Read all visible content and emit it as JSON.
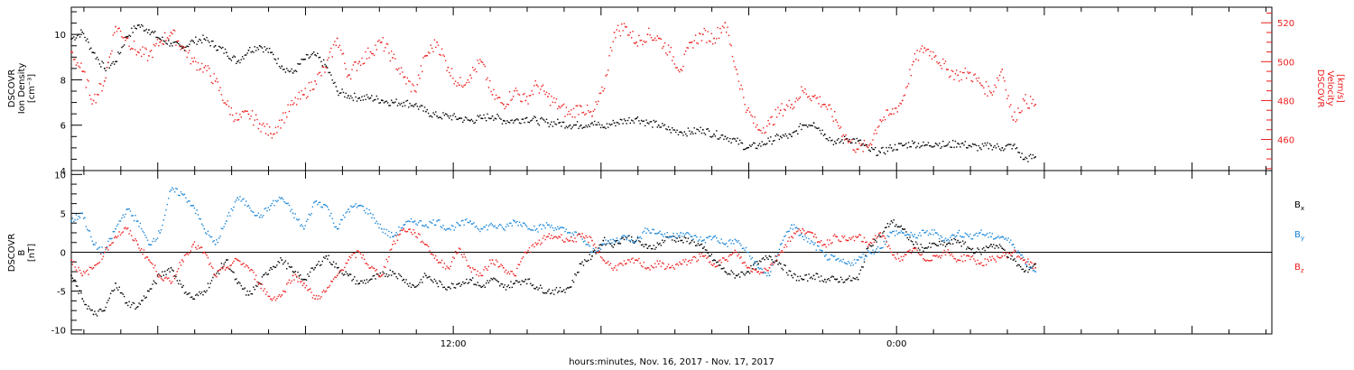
{
  "chart_data": [
    {
      "type": "scatter",
      "panel": "top",
      "ylabel_left": [
        "DSCOVR",
        "Ion Density",
        "[cm⁻³]"
      ],
      "ylabel_right": [
        "DSCOVR",
        "Velocity",
        "[km/s]"
      ],
      "ylim_left": [
        4,
        11.2
      ],
      "yticks_left": [
        "4",
        "6",
        "8",
        "10"
      ],
      "ylim_right": [
        444,
        528
      ],
      "yticks_right": [
        "460",
        "480",
        "500",
        "520"
      ],
      "series": [
        {
          "color": "#000000",
          "axis": "left",
          "x": [
            0,
            0.3,
            0.6,
            0.9,
            1.2,
            1.5,
            1.8,
            2.1,
            2.4,
            2.7,
            3,
            3.3,
            3.6,
            3.9,
            4.2,
            4.5,
            4.8,
            5.1,
            5.4,
            5.7,
            6,
            6.3,
            6.6,
            6.9,
            7.2,
            7.5,
            7.8,
            8.1,
            8.4,
            8.7,
            9,
            9.3,
            9.6,
            9.9,
            10.2,
            10.5,
            10.8,
            11.1,
            11.4,
            11.7,
            12,
            12.3,
            12.6,
            12.9,
            13.2,
            13.5,
            13.8,
            14.1,
            14.4,
            14.7,
            15,
            15.3,
            15.6,
            15.9,
            16.2,
            16.5,
            16.8,
            17.1,
            17.4,
            17.7,
            18,
            18.3,
            18.6,
            18.9,
            19.2,
            19.5,
            19.8,
            20.1,
            20.4,
            20.7,
            21,
            21.3,
            21.6,
            21.9,
            22.2,
            22.5,
            22.8,
            23.1,
            23.4,
            23.7,
            24,
            24.3,
            24.6,
            24.9,
            25.2,
            25.5,
            25.8,
            26.1
          ],
          "y": [
            9.8,
            10.1,
            9.2,
            8.5,
            8.8,
            9.9,
            10.4,
            10.2,
            9.8,
            9.6,
            9.4,
            9.7,
            9.8,
            9.5,
            9.2,
            8.8,
            9.3,
            9.5,
            9.2,
            8.6,
            8.3,
            8.9,
            9.1,
            8.6,
            7.5,
            7.3,
            7.2,
            7.2,
            7.1,
            7,
            7,
            6.9,
            6.6,
            6.4,
            6.4,
            6.3,
            6.2,
            6.3,
            6.4,
            6.2,
            6.2,
            6.3,
            6.2,
            6.1,
            6.1,
            6,
            6,
            6.1,
            5.9,
            6.1,
            6.2,
            6.3,
            6.1,
            6,
            5.8,
            5.7,
            5.7,
            5.8,
            5.6,
            5.5,
            5.3,
            5,
            5.1,
            5.3,
            5.5,
            5.5,
            6,
            6.1,
            5.6,
            5.2,
            5.4,
            5.3,
            4.9,
            4.8,
            5,
            5.1,
            5.2,
            5.1,
            5.2,
            5.1,
            5.2,
            5.1,
            5,
            5.1,
            5,
            5.1,
            4.5,
            4.6
          ]
        },
        {
          "color": "#ee1c1c",
          "axis": "right",
          "x": [
            0,
            0.3,
            0.6,
            0.9,
            1.2,
            1.5,
            1.8,
            2.1,
            2.4,
            2.7,
            3,
            3.3,
            3.6,
            3.9,
            4.2,
            4.5,
            4.8,
            5.1,
            5.4,
            5.7,
            6,
            6.3,
            6.6,
            6.9,
            7.2,
            7.5,
            7.8,
            8.1,
            8.4,
            8.7,
            9,
            9.3,
            9.6,
            9.9,
            10.2,
            10.5,
            10.8,
            11.1,
            11.4,
            11.7,
            12,
            12.3,
            12.6,
            12.9,
            13.2,
            13.5,
            13.8,
            14.1,
            14.4,
            14.7,
            15,
            15.3,
            15.6,
            15.9,
            16.2,
            16.5,
            16.8,
            17.1,
            17.4,
            17.7,
            18,
            18.3,
            18.6,
            18.9,
            19.2,
            19.5,
            19.8,
            20.1,
            20.4,
            20.7,
            21,
            21.3,
            21.6,
            21.9,
            22.2,
            22.5,
            22.8,
            23.1,
            23.4,
            23.7,
            24,
            24.3,
            24.6,
            24.9,
            25.2,
            25.5,
            25.8,
            26.1
          ],
          "y": [
            505,
            495,
            480,
            490,
            518,
            512,
            505,
            503,
            510,
            515,
            508,
            500,
            497,
            490,
            478,
            470,
            473,
            468,
            463,
            470,
            478,
            483,
            490,
            497,
            512,
            493,
            500,
            505,
            510,
            502,
            492,
            485,
            503,
            510,
            497,
            488,
            493,
            500,
            483,
            478,
            485,
            480,
            488,
            482,
            477,
            473,
            477,
            472,
            485,
            515,
            518,
            510,
            514,
            512,
            505,
            496,
            510,
            514,
            512,
            520,
            496,
            475,
            465,
            468,
            475,
            478,
            485,
            482,
            478,
            470,
            460,
            455,
            457,
            470,
            473,
            480,
            500,
            507,
            503,
            496,
            493,
            494,
            489,
            484,
            496,
            470,
            480,
            478
          ]
        }
      ]
    },
    {
      "type": "scatter",
      "panel": "bottom",
      "ylabel_left": [
        "DSCOVR",
        "B",
        "[nT]"
      ],
      "ylim": [
        -10.5,
        10.5
      ],
      "yticks": [
        "-10",
        "-5",
        "0",
        "5",
        "10"
      ],
      "zero_line": true,
      "legend_position": "right",
      "series": [
        {
          "name_main": "B",
          "name_sub": "x",
          "color": "#000000",
          "x": [
            0,
            0.3,
            0.6,
            0.9,
            1.2,
            1.5,
            1.8,
            2.1,
            2.4,
            2.7,
            3,
            3.3,
            3.6,
            3.9,
            4.2,
            4.5,
            4.8,
            5.1,
            5.4,
            5.7,
            6,
            6.3,
            6.6,
            6.9,
            7.2,
            7.5,
            7.8,
            8.1,
            8.4,
            8.7,
            9,
            9.3,
            9.6,
            9.9,
            10.2,
            10.5,
            10.8,
            11.1,
            11.4,
            11.7,
            12,
            12.3,
            12.6,
            12.9,
            13.2,
            13.5,
            13.8,
            14.1,
            14.4,
            14.7,
            15,
            15.3,
            15.6,
            15.9,
            16.2,
            16.5,
            16.8,
            17.1,
            17.4,
            17.7,
            18,
            18.3,
            18.6,
            18.9,
            19.2,
            19.5,
            19.8,
            20.1,
            20.4,
            20.7,
            21,
            21.3,
            21.6,
            21.9,
            22.2,
            22.5,
            22.8,
            23.1,
            23.4,
            23.7,
            24,
            24.3,
            24.6,
            24.9,
            25.2,
            25.5,
            25.8,
            26.1
          ],
          "y": [
            -3,
            -6,
            -8,
            -7.5,
            -4,
            -6.5,
            -7,
            -5,
            -3,
            -2,
            -4.5,
            -6,
            -5,
            -3,
            -1,
            -4,
            -5.5,
            -4,
            -2,
            -1,
            -2.5,
            -3.5,
            -2,
            -0.5,
            -2,
            -3,
            -4,
            -3.5,
            -3,
            -2.5,
            -3.5,
            -4.5,
            -3,
            -4,
            -4.5,
            -4,
            -3.5,
            -4.5,
            -3.5,
            -4.5,
            -4,
            -3.5,
            -4.5,
            -5,
            -5,
            -4.5,
            -1.5,
            -0.5,
            1.5,
            1,
            2,
            1.5,
            0.5,
            1,
            2,
            1.5,
            1.5,
            0.5,
            -1,
            -2.5,
            -3,
            -2.5,
            -1.5,
            -0.5,
            -1.5,
            -3,
            -3.5,
            -3,
            -3.5,
            -3.5,
            -3.5,
            -3.5,
            1,
            2,
            4,
            3,
            1,
            0.5,
            1,
            1,
            1.5,
            0.5,
            0,
            1,
            0.5,
            -1,
            -2.5,
            -1.5
          ]
        },
        {
          "name_main": "B",
          "name_sub": "y",
          "color": "#1a86d8",
          "x": [
            0,
            0.3,
            0.6,
            0.9,
            1.2,
            1.5,
            1.8,
            2.1,
            2.4,
            2.7,
            3,
            3.3,
            3.6,
            3.9,
            4.2,
            4.5,
            4.8,
            5.1,
            5.4,
            5.7,
            6,
            6.3,
            6.6,
            6.9,
            7.2,
            7.5,
            7.8,
            8.1,
            8.4,
            8.7,
            9,
            9.3,
            9.6,
            9.9,
            10.2,
            10.5,
            10.8,
            11.1,
            11.4,
            11.7,
            12,
            12.3,
            12.6,
            12.9,
            13.2,
            13.5,
            13.8,
            14.1,
            14.4,
            14.7,
            15,
            15.3,
            15.6,
            15.9,
            16.2,
            16.5,
            16.8,
            17.1,
            17.4,
            17.7,
            18,
            18.3,
            18.6,
            18.9,
            19.2,
            19.5,
            19.8,
            20.1,
            20.4,
            20.7,
            21,
            21.3,
            21.6,
            21.9,
            22.2,
            22.5,
            22.8,
            23.1,
            23.4,
            23.7,
            24,
            24.3,
            24.6,
            24.9,
            25.2,
            25.5,
            25.8,
            26.1
          ],
          "y": [
            4,
            5,
            1,
            0,
            3,
            5.5,
            4,
            1,
            2.5,
            8,
            7.5,
            6,
            3,
            1,
            4,
            7,
            6,
            4.5,
            6,
            7,
            5,
            3,
            6.5,
            6,
            3,
            5.5,
            6,
            5,
            3,
            2,
            3.5,
            4,
            3.5,
            4,
            3,
            3.5,
            4,
            3,
            3.5,
            3,
            4,
            3.5,
            3,
            3.5,
            3,
            2.5,
            2,
            0,
            1,
            1.5,
            2,
            1.5,
            3,
            2.5,
            2,
            2.5,
            2,
            1.5,
            2,
            1,
            1.5,
            0,
            -2,
            -3,
            1,
            3.5,
            2,
            1,
            -0.5,
            -1,
            -1.5,
            -1,
            0,
            0.5,
            2.5,
            2.5,
            2,
            2.5,
            2.5,
            1.5,
            2.5,
            2,
            2.5,
            2,
            2,
            1,
            -1,
            -2.5
          ]
        },
        {
          "name_main": "B",
          "name_sub": "z",
          "color": "#ee1c1c",
          "x": [
            0,
            0.3,
            0.6,
            0.9,
            1.2,
            1.5,
            1.8,
            2.1,
            2.4,
            2.7,
            3,
            3.3,
            3.6,
            3.9,
            4.2,
            4.5,
            4.8,
            5.1,
            5.4,
            5.7,
            6,
            6.3,
            6.6,
            6.9,
            7.2,
            7.5,
            7.8,
            8.1,
            8.4,
            8.7,
            9,
            9.3,
            9.6,
            9.9,
            10.2,
            10.5,
            10.8,
            11.1,
            11.4,
            11.7,
            12,
            12.3,
            12.6,
            12.9,
            13.2,
            13.5,
            13.8,
            14.1,
            14.4,
            14.7,
            15,
            15.3,
            15.6,
            15.9,
            16.2,
            16.5,
            16.8,
            17.1,
            17.4,
            17.7,
            18,
            18.3,
            18.6,
            18.9,
            19.2,
            19.5,
            19.8,
            20.1,
            20.4,
            20.7,
            21,
            21.3,
            21.6,
            21.9,
            22.2,
            22.5,
            22.8,
            23.1,
            23.4,
            23.7,
            24,
            24.3,
            24.6,
            24.9,
            25.2,
            25.5,
            25.8,
            26.1
          ],
          "y": [
            -1,
            -3,
            -2,
            0,
            2,
            3,
            1,
            -1,
            -3,
            -4,
            -1,
            1,
            0,
            -3,
            -2,
            -1,
            -2,
            -4,
            -6,
            -5.5,
            -3,
            -4,
            -6,
            -5,
            -3,
            -1,
            0,
            -2,
            -3,
            1,
            3,
            2.5,
            1,
            -1,
            -2,
            0.5,
            -2,
            -3,
            -1,
            -2,
            -3,
            0,
            1,
            2,
            2,
            1.5,
            2,
            1.5,
            -1,
            -2,
            -1.5,
            -1,
            -2,
            -1.5,
            -2,
            -1.5,
            -1,
            -0.5,
            -1.5,
            -1,
            0,
            -2,
            -2.5,
            -2,
            0,
            2,
            3,
            2,
            1,
            2,
            1.5,
            2,
            1,
            2.5,
            0,
            -1,
            0.5,
            -1,
            -0.5,
            0,
            -1,
            -0.5,
            -1.5,
            -1,
            -0.5,
            0,
            -1,
            -2
          ]
        }
      ]
    }
  ],
  "x_axis": {
    "xlim_hours": [
      0,
      32.5
    ],
    "xlabel": "hours:minutes, Nov. 16, 2017 - Nov. 17, 2017",
    "tick_labels": [
      {
        "hour": 10.34,
        "label": "12:00"
      },
      {
        "hour": 22.34,
        "label": "0:00"
      }
    ]
  }
}
